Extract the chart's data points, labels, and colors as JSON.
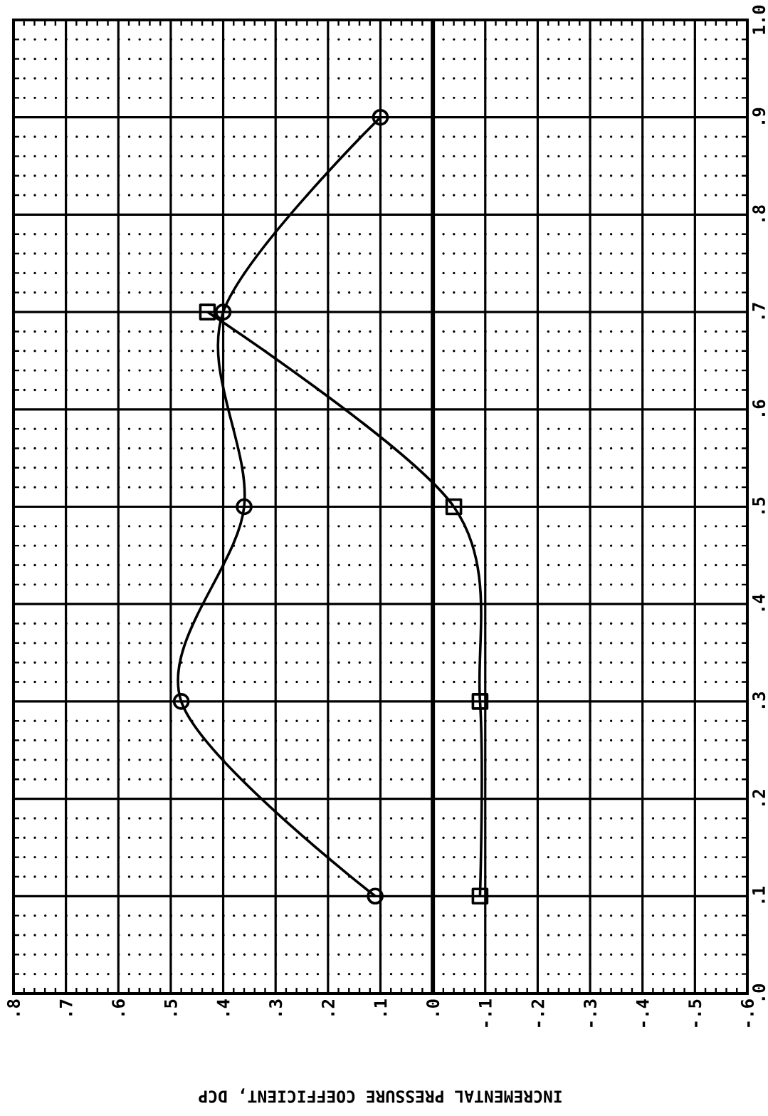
{
  "chart_data": {
    "type": "line",
    "xlabel": "INCREMENTAL PRESSURE COEFFICIENT, DCP",
    "series": [
      {
        "color": "#000000",
        "marker": "circle",
        "x": [
          0.11,
          0.48,
          0.36,
          0.4,
          0.1
        ],
        "values": [
          0.1,
          0.3,
          0.5,
          0.7,
          0.9
        ]
      },
      {
        "color": "#000000",
        "marker": "square",
        "x": [
          -0.09,
          -0.09,
          -0.04,
          0.43
        ],
        "values": [
          0.1,
          0.3,
          0.5,
          0.7
        ]
      }
    ],
    "xlim": [
      0.8,
      -0.6
    ],
    "ylim": [
      0,
      1
    ],
    "xticks": [
      {
        "value": 0.8,
        "label": ".8"
      },
      {
        "value": 0.7,
        "label": ".7"
      },
      {
        "value": 0.6,
        "label": ".6"
      },
      {
        "value": 0.5,
        "label": ".5"
      },
      {
        "value": 0.4,
        "label": ".4"
      },
      {
        "value": 0.3,
        "label": ".3"
      },
      {
        "value": 0.2,
        "label": ".2"
      },
      {
        "value": 0.1,
        "label": ".1"
      },
      {
        "value": 0,
        "label": ".0"
      },
      {
        "value": -0.1,
        "label": "-.1"
      },
      {
        "value": -0.2,
        "label": "-.2"
      },
      {
        "value": -0.3,
        "label": "-.3"
      },
      {
        "value": -0.4,
        "label": "-.4"
      },
      {
        "value": -0.5,
        "label": "-.5"
      },
      {
        "value": -0.6,
        "label": "-.6"
      }
    ],
    "yticks": [
      {
        "value": 0,
        "label": ".0"
      },
      {
        "value": 0.1,
        "label": ".1"
      },
      {
        "value": 0.2,
        "label": ".2"
      },
      {
        "value": 0.3,
        "label": ".3"
      },
      {
        "value": 0.4,
        "label": ".4"
      },
      {
        "value": 0.5,
        "label": ".5"
      },
      {
        "value": 0.6,
        "label": ".6"
      },
      {
        "value": 0.7,
        "label": ".7"
      },
      {
        "value": 0.8,
        "label": ".8"
      },
      {
        "value": 0.9,
        "label": ".9"
      },
      {
        "value": 1.0,
        "label": "1.0"
      }
    ],
    "ref_lines": [
      {
        "axis": "x",
        "value": 0
      }
    ],
    "grid": true,
    "line_style": "solid"
  }
}
